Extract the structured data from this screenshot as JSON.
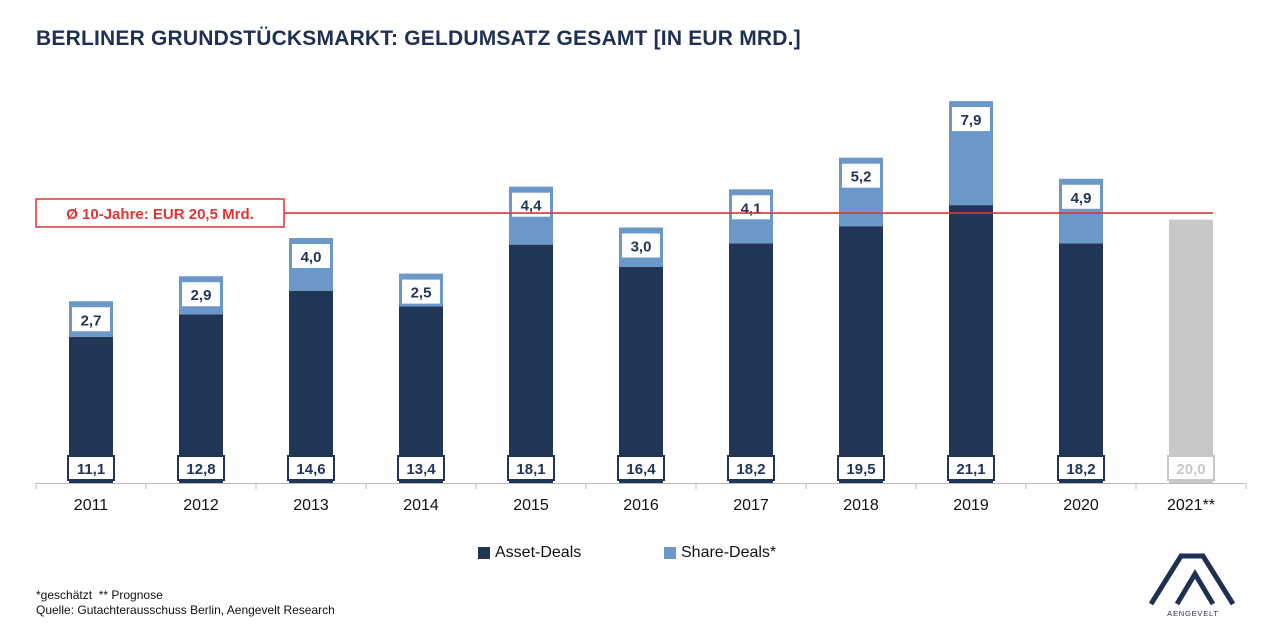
{
  "title": "BERLINER GRUNDSTÜCKSMARKT: GELDUMSATZ GESAMT [IN EUR MRD.]",
  "average_label": "Ø 10-Jahre: EUR 20,5 Mrd.",
  "legend": {
    "asset": "Asset-Deals",
    "share": "Share-Deals*"
  },
  "footnote": {
    "line1": "*geschätzt  ** Prognose",
    "line2": "Quelle: Gutachterausschuss Berlin, Aengevelt Research"
  },
  "logo_text": "AENGEVELT",
  "colors": {
    "asset": "#213656",
    "share": "#6b98c8",
    "forecast": "#c8c8c8",
    "average_line": "#e03535",
    "title": "#1f3055"
  },
  "chart_data": {
    "type": "bar",
    "stacked": true,
    "categories": [
      "2011",
      "2012",
      "2013",
      "2014",
      "2015",
      "2016",
      "2017",
      "2018",
      "2019",
      "2020",
      "2021**"
    ],
    "series": [
      {
        "name": "Asset-Deals",
        "values": [
          11.1,
          12.8,
          14.6,
          13.4,
          18.1,
          16.4,
          18.2,
          19.5,
          21.1,
          18.2,
          null
        ],
        "labels": [
          "11,1",
          "12,8",
          "14,6",
          "13,4",
          "18,1",
          "16,4",
          "18,2",
          "19,5",
          "21,1",
          "18,2",
          null
        ]
      },
      {
        "name": "Share-Deals*",
        "values": [
          2.7,
          2.9,
          4.0,
          2.5,
          4.4,
          3.0,
          4.1,
          5.2,
          7.9,
          4.9,
          null
        ],
        "labels": [
          "2,7",
          "2,9",
          "4,0",
          "2,5",
          "4,4",
          "3,0",
          "4,1",
          "5,2",
          "7,9",
          "4,9",
          null
        ]
      }
    ],
    "forecast": {
      "category": "2021**",
      "value": 20.0,
      "label": "20,0"
    },
    "average": {
      "value": 20.5
    },
    "ylim": [
      0,
      30
    ],
    "grid": false,
    "legend_position": "bottom"
  }
}
